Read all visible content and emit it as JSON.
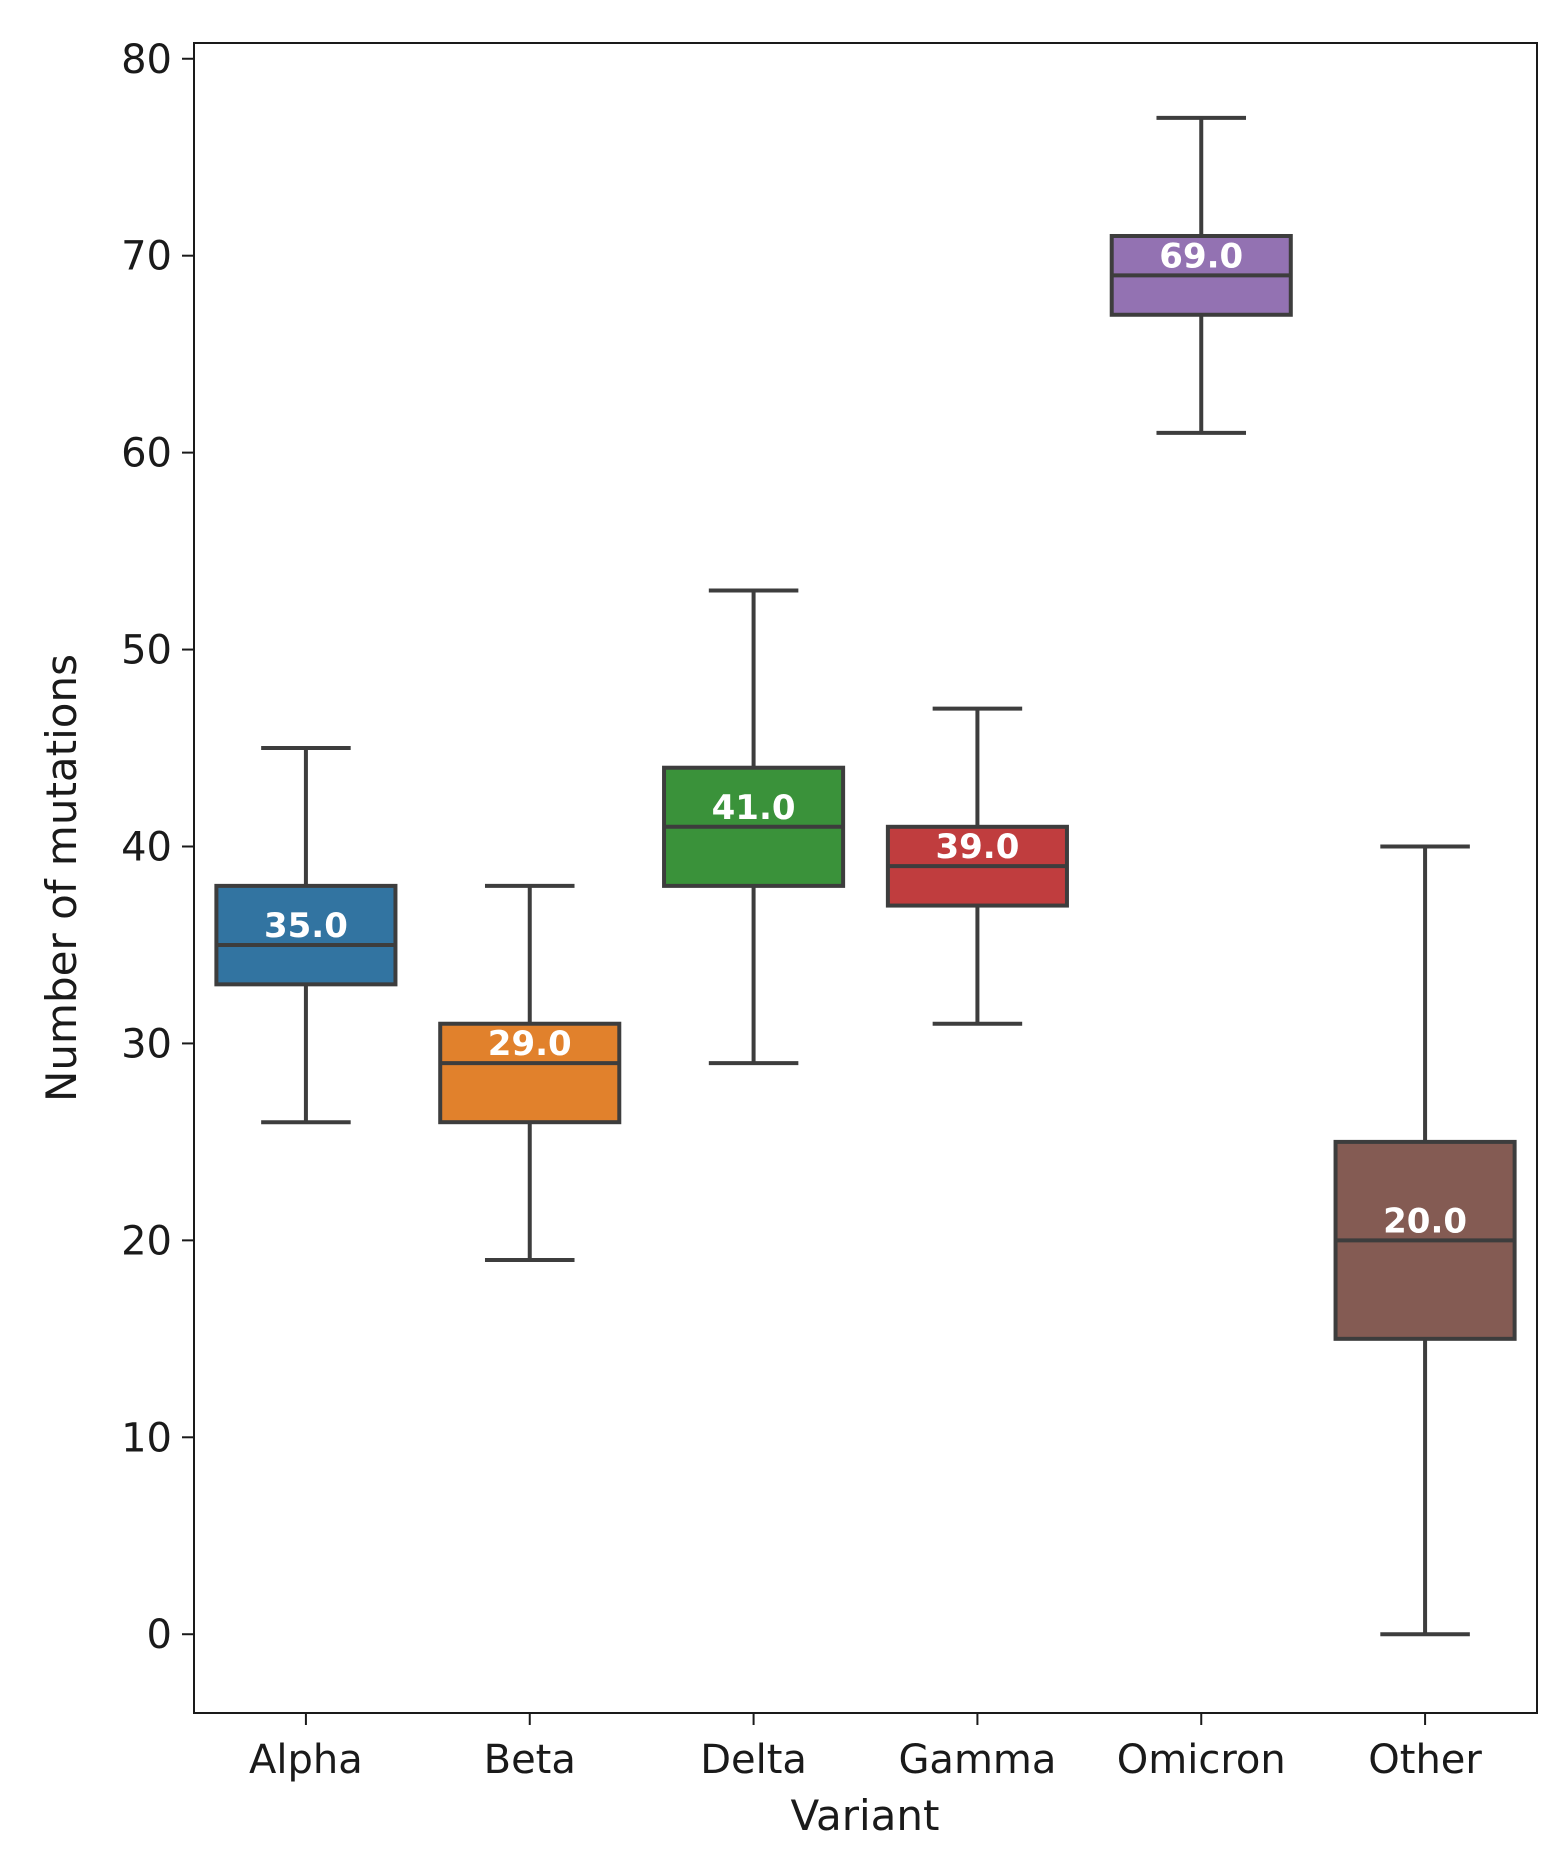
{
  "chart_data": {
    "type": "box",
    "title": "",
    "xlabel": "Variant",
    "ylabel": "Number of mutations",
    "ylim": [
      -4,
      80.8
    ],
    "yticks": [
      0,
      10,
      20,
      30,
      40,
      50,
      60,
      70,
      80
    ],
    "yticks_labels": [
      "0",
      "10",
      "20",
      "30",
      "40",
      "50",
      "60",
      "70",
      "80"
    ],
    "grid": false,
    "categories": [
      "Alpha",
      "Beta",
      "Delta",
      "Gamma",
      "Omicron",
      "Other"
    ],
    "boxes": [
      {
        "name": "Alpha",
        "whisker_low": 26,
        "q1": 33,
        "median": 35,
        "q3": 38,
        "whisker_high": 45,
        "label": "35.0",
        "color": "#3274a1"
      },
      {
        "name": "Beta",
        "whisker_low": 19,
        "q1": 26,
        "median": 29,
        "q3": 31,
        "whisker_high": 38,
        "label": "29.0",
        "color": "#e1812c"
      },
      {
        "name": "Delta",
        "whisker_low": 29,
        "q1": 38,
        "median": 41,
        "q3": 44,
        "whisker_high": 53,
        "label": "41.0",
        "color": "#3a923a"
      },
      {
        "name": "Gamma",
        "whisker_low": 31,
        "q1": 37,
        "median": 39,
        "q3": 41,
        "whisker_high": 47,
        "label": "39.0",
        "color": "#c03d3e"
      },
      {
        "name": "Omicron",
        "whisker_low": 61,
        "q1": 67,
        "median": 69,
        "q3": 71,
        "whisker_high": 77,
        "label": "69.0",
        "color": "#9372b2"
      },
      {
        "name": "Other",
        "whisker_low": 0,
        "q1": 15,
        "median": 20,
        "q3": 25,
        "whisker_high": 40,
        "label": "20.0",
        "color": "#845b53"
      }
    ],
    "line_color": "#3d3d3d"
  }
}
